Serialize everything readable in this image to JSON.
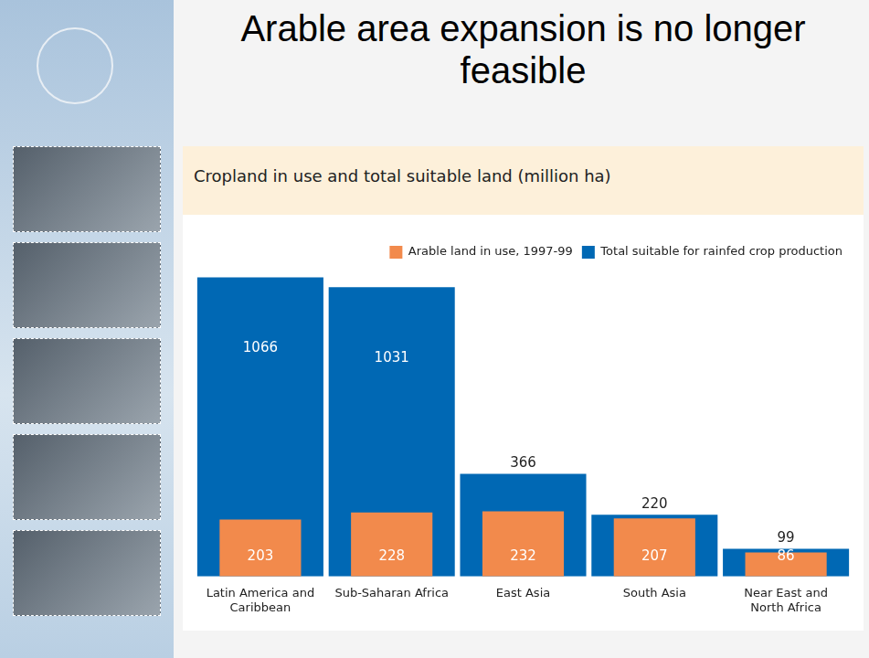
{
  "title": "Arable area expansion is no longer feasible",
  "chart_data": {
    "type": "bar",
    "title": "Cropland in use and total suitable land (million ha)",
    "categories": [
      "Latin America and Caribbean",
      "Sub-Saharan Africa",
      "East Asia",
      "South Asia",
      "Near East and North Africa"
    ],
    "series": [
      {
        "name": "Arable land in use, 1997-99",
        "color": "#f28a4c",
        "values": [
          203,
          228,
          232,
          207,
          86
        ]
      },
      {
        "name": "Total suitable for rainfed crop production",
        "color": "#0068b4",
        "values": [
          1066,
          1031,
          366,
          220,
          99
        ]
      }
    ],
    "ylim": [
      0,
      1100
    ],
    "grid": false,
    "legend": "top-right",
    "data_labels": true,
    "tick_labels": "x",
    "stacked": false
  }
}
